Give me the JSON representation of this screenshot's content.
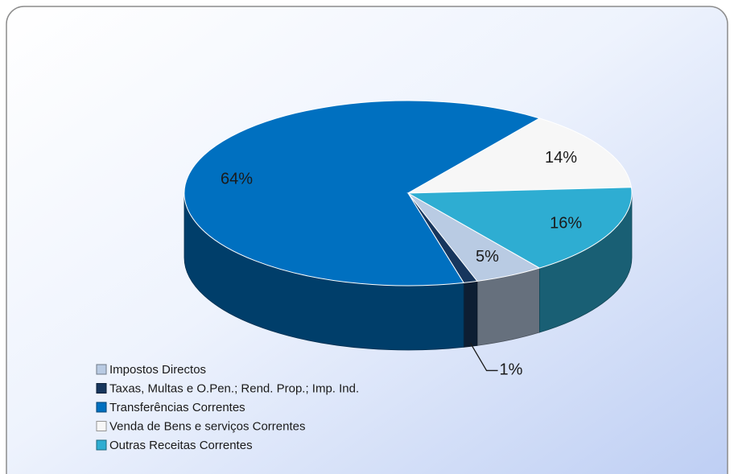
{
  "chart_data": {
    "type": "pie",
    "categories": [
      "Impostos Directos",
      "Taxas, Multas e O.Pen.; Rend. Prop.; Imp. Ind.",
      "Transferências Correntes",
      "Venda de Bens e serviços Correntes",
      "Outras Receitas Correntes"
    ],
    "values": [
      5,
      1,
      64,
      14,
      16
    ],
    "value_labels": [
      "5%",
      "1%",
      "64%",
      "14%",
      "16%"
    ],
    "colors": [
      "#b9cbe3",
      "#17365d",
      "#0070c0",
      "#f7f7f7",
      "#2eadd2"
    ],
    "legend": "bottom-left",
    "three_d": true
  }
}
